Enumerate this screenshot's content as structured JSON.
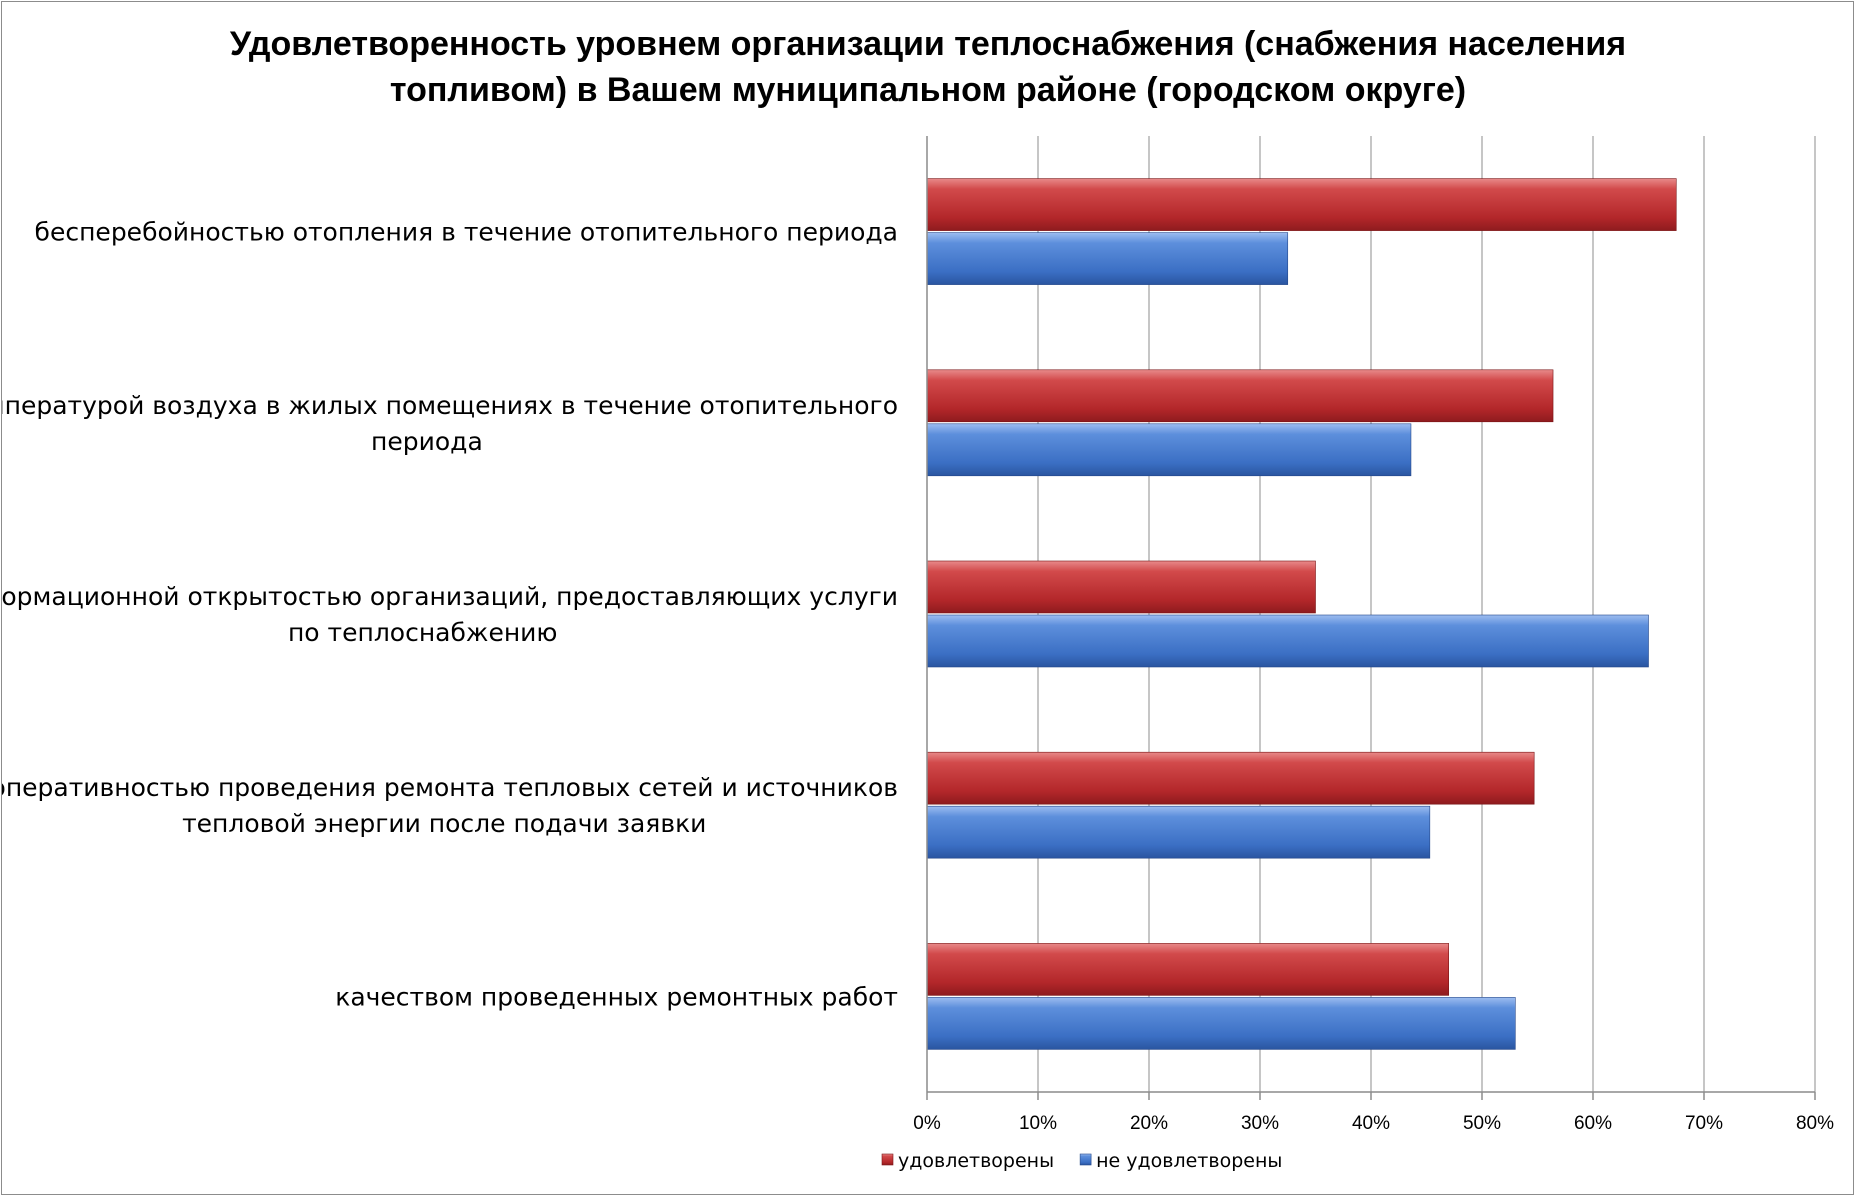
{
  "chart_data": {
    "type": "bar",
    "orientation": "horizontal",
    "title_lines": [
      "Удовлетворенность уровнем организации теплоснабжения (снабжения населения",
      "топливом) в Вашем муниципальном районе (городском округе)"
    ],
    "categories": [
      [
        "бесперебойностью  отопления в течение отопительного периода"
      ],
      [
        "температурой  воздуха в жилых помещениях в течение отопительного",
        "периода"
      ],
      [
        "информационной открытостью  организаций, предоставляющих услуги",
        "по теплоснабжению"
      ],
      [
        "оперативностью проведения ремонта тепловых сетей и источников",
        "тепловой энергии после подачи заявки"
      ],
      [
        "качеством  проведенных ремонтных работ"
      ]
    ],
    "series": [
      {
        "name": "удовлетворены",
        "color": "#c0393b",
        "values": [
          67.5,
          56.4,
          35.0,
          54.7,
          47.0
        ]
      },
      {
        "name": "не удовлетворены",
        "color": "#4a7fd0",
        "values": [
          32.5,
          43.6,
          65.0,
          45.3,
          53.0
        ]
      }
    ],
    "xlim": [
      0,
      80
    ],
    "xticks": [
      0,
      10,
      20,
      30,
      40,
      50,
      60,
      70,
      80
    ],
    "tick_suffix": "%",
    "grid": true,
    "legend_position": "bottom"
  }
}
